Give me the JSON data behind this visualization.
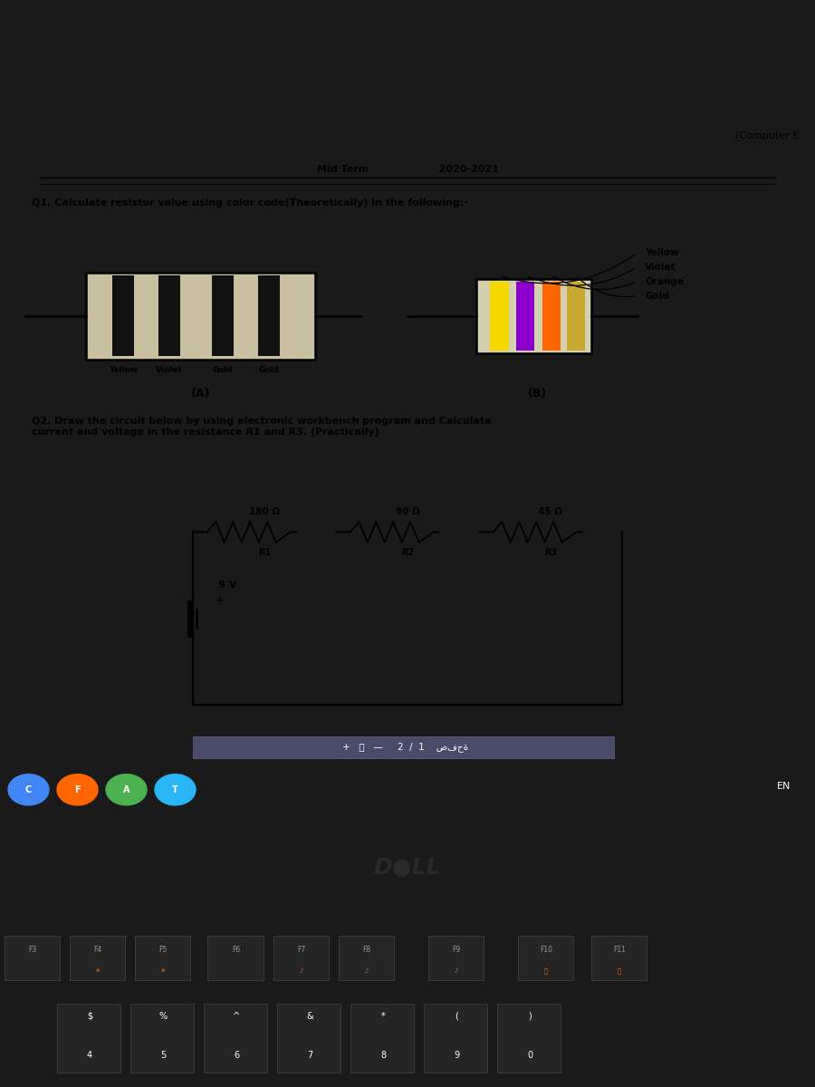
{
  "bg_outer": "#1a1a1a",
  "bg_screen_bar": "#7a7a8a",
  "bg_paper": "#e8e4d8",
  "corner_text": "(Computer E",
  "header_text": "Mid Term                    2020-2021",
  "q1_text": "Q1. Calculate resistor value using color code(Theoretically) in the following:-",
  "q2_text": "Q2. Draw the circuit below by using electronic workbench program and Calculate\ncurrent and voltage in the resistance R1 and R3. (Practically)",
  "label_A": "(A)",
  "label_B": "(B)",
  "resistorA_body_color": "#c8c0a0",
  "resistorA_band_colors": [
    "#111111",
    "#111111",
    "#111111",
    "#111111"
  ],
  "resistorA_labels": [
    "Yellow",
    "Violet",
    "Gold",
    "Gold"
  ],
  "resistorB_body_color": "#d4d0b0",
  "resistorB_band_colors": [
    "#f5d800",
    "#8b00cc",
    "#ff6600",
    "#c8a830"
  ],
  "resistorB_labels": [
    "Yellow",
    "Violet",
    "Orange",
    "Gold"
  ],
  "circuit_R_values": [
    "180 Ω",
    "90 Ω",
    "45 Ω"
  ],
  "circuit_R_names": [
    "R1",
    "R2",
    "R3"
  ],
  "circuit_voltage": "9 V",
  "taskbar_color": "#2d2d2d",
  "dell_color": "#111111",
  "keyboard_color": "#1a1a1a"
}
